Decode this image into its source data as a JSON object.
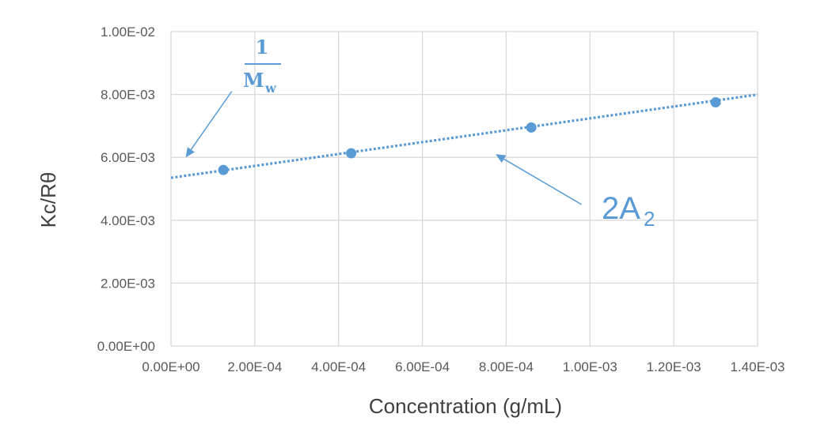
{
  "chart_data": {
    "type": "scatter",
    "xlabel": "Concentration (g/mL)",
    "ylabel": "Kc/Rθ",
    "xlim": [
      0,
      0.0014
    ],
    "ylim": [
      0,
      0.01
    ],
    "x_ticks": [
      0,
      0.0002,
      0.0004,
      0.0006,
      0.0008,
      0.001,
      0.0012,
      0.0014
    ],
    "y_ticks": [
      0,
      0.002,
      0.004,
      0.006,
      0.008,
      0.01
    ],
    "x_tick_labels": [
      "0.00E+00",
      "2.00E-04",
      "4.00E-04",
      "6.00E-04",
      "8.00E-04",
      "1.00E-03",
      "1.20E-03",
      "1.40E-03"
    ],
    "y_tick_labels": [
      "0.00E+00",
      "2.00E-03",
      "4.00E-03",
      "6.00E-03",
      "8.00E-03",
      "1.00E-02"
    ],
    "grid": true,
    "legend": "none",
    "series": [
      {
        "points": [
          {
            "x": 0.000125,
            "y": 0.0056
          },
          {
            "x": 0.00043,
            "y": 0.00613
          },
          {
            "x": 0.00086,
            "y": 0.00695
          },
          {
            "x": 0.0013,
            "y": 0.00775
          }
        ],
        "color": "#5b9bd5"
      }
    ],
    "trendline": {
      "style": "dotted",
      "color": "#5b9bd5",
      "intercept": 0.00535,
      "slope": 1.89,
      "x_range": [
        0,
        0.0014
      ]
    },
    "annotations": {
      "intercept_label": {
        "numerator": "1",
        "denominator": "M",
        "subscript": "w",
        "arrow_tail": [
          0.000145,
          0.0081
        ],
        "arrow_head": [
          3.5e-05,
          0.006
        ]
      },
      "slope_label": {
        "text": "2A",
        "subscript": "2",
        "arrow_tail": [
          0.00098,
          0.0045
        ],
        "arrow_head": [
          0.000775,
          0.0061
        ]
      }
    }
  }
}
